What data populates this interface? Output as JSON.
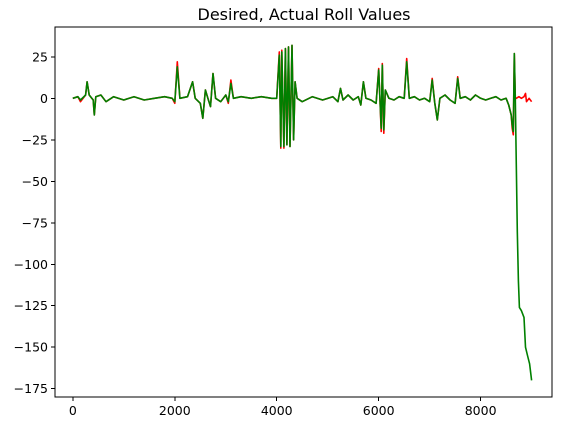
{
  "chart_data": {
    "type": "line",
    "title": "Desired, Actual Roll Values",
    "xlabel": "",
    "ylabel": "",
    "xlim": [
      -350,
      9400
    ],
    "ylim": [
      -180,
      43
    ],
    "x_ticks": [
      0,
      2000,
      4000,
      6000,
      8000
    ],
    "x_tick_labels": [
      "0",
      "2000",
      "4000",
      "6000",
      "8000"
    ],
    "y_ticks": [
      25,
      0,
      -25,
      -50,
      -75,
      -100,
      -125,
      -150,
      -175
    ],
    "y_tick_labels": [
      "25",
      "0",
      "−25",
      "−50",
      "−75",
      "−100",
      "−125",
      "−150",
      "−175"
    ],
    "grid": false,
    "series": [
      {
        "color": "#ff0000",
        "points": [
          [
            0,
            0
          ],
          [
            100,
            1
          ],
          [
            150,
            -2
          ],
          [
            250,
            2
          ],
          [
            280,
            10
          ],
          [
            320,
            2
          ],
          [
            400,
            -1
          ],
          [
            420,
            -10
          ],
          [
            450,
            1
          ],
          [
            550,
            2
          ],
          [
            650,
            -2
          ],
          [
            800,
            1
          ],
          [
            1000,
            -1
          ],
          [
            1200,
            1
          ],
          [
            1400,
            -1
          ],
          [
            1600,
            0
          ],
          [
            1800,
            1
          ],
          [
            1950,
            0
          ],
          [
            2000,
            -3
          ],
          [
            2050,
            22
          ],
          [
            2100,
            0
          ],
          [
            2250,
            1
          ],
          [
            2350,
            10
          ],
          [
            2400,
            0
          ],
          [
            2500,
            -3
          ],
          [
            2550,
            -12
          ],
          [
            2600,
            5
          ],
          [
            2650,
            0
          ],
          [
            2700,
            -5
          ],
          [
            2750,
            15
          ],
          [
            2800,
            0
          ],
          [
            2900,
            -2
          ],
          [
            3000,
            2
          ],
          [
            3050,
            -3
          ],
          [
            3100,
            11
          ],
          [
            3150,
            0
          ],
          [
            3300,
            1
          ],
          [
            3500,
            0
          ],
          [
            3700,
            1
          ],
          [
            3900,
            0
          ],
          [
            4000,
            0
          ],
          [
            4050,
            28
          ],
          [
            4080,
            -30
          ],
          [
            4100,
            29
          ],
          [
            4140,
            -30
          ],
          [
            4170,
            30
          ],
          [
            4200,
            -28
          ],
          [
            4230,
            31
          ],
          [
            4260,
            -29
          ],
          [
            4300,
            32
          ],
          [
            4330,
            -25
          ],
          [
            4360,
            10
          ],
          [
            4400,
            0
          ],
          [
            4500,
            -2
          ],
          [
            4700,
            1
          ],
          [
            4900,
            -1
          ],
          [
            5100,
            1
          ],
          [
            5200,
            -2
          ],
          [
            5250,
            6
          ],
          [
            5300,
            -1
          ],
          [
            5400,
            2
          ],
          [
            5500,
            -1
          ],
          [
            5600,
            1
          ],
          [
            5650,
            -4
          ],
          [
            5700,
            10
          ],
          [
            5750,
            0
          ],
          [
            5850,
            -1
          ],
          [
            5950,
            -3
          ],
          [
            6000,
            18
          ],
          [
            6050,
            -20
          ],
          [
            6070,
            21
          ],
          [
            6100,
            -21
          ],
          [
            6130,
            5
          ],
          [
            6200,
            0
          ],
          [
            6300,
            -1
          ],
          [
            6400,
            1
          ],
          [
            6500,
            0
          ],
          [
            6550,
            24
          ],
          [
            6600,
            0
          ],
          [
            6700,
            1
          ],
          [
            6800,
            -1
          ],
          [
            6900,
            0
          ],
          [
            7000,
            -2
          ],
          [
            7050,
            12
          ],
          [
            7100,
            -3
          ],
          [
            7150,
            -13
          ],
          [
            7200,
            0
          ],
          [
            7300,
            2
          ],
          [
            7400,
            -1
          ],
          [
            7500,
            -3
          ],
          [
            7550,
            13
          ],
          [
            7600,
            0
          ],
          [
            7700,
            1
          ],
          [
            7800,
            -1
          ],
          [
            7900,
            2
          ],
          [
            8000,
            0
          ],
          [
            8100,
            -1
          ],
          [
            8200,
            0
          ],
          [
            8300,
            1
          ],
          [
            8400,
            -1
          ],
          [
            8500,
            0
          ],
          [
            8550,
            -4
          ],
          [
            8600,
            -10
          ],
          [
            8620,
            -18
          ],
          [
            8640,
            -22
          ],
          [
            8660,
            27
          ],
          [
            8680,
            0
          ],
          [
            8700,
            0
          ],
          [
            8750,
            1
          ],
          [
            8800,
            0
          ],
          [
            8850,
            1
          ],
          [
            8880,
            3
          ],
          [
            8900,
            -2
          ],
          [
            8950,
            0
          ],
          [
            9000,
            -2
          ]
        ]
      },
      {
        "color": "#008000",
        "points": [
          [
            0,
            0
          ],
          [
            100,
            1
          ],
          [
            150,
            -1
          ],
          [
            250,
            2
          ],
          [
            280,
            10
          ],
          [
            320,
            2
          ],
          [
            400,
            -1
          ],
          [
            420,
            -10
          ],
          [
            450,
            1
          ],
          [
            550,
            2
          ],
          [
            650,
            -2
          ],
          [
            800,
            1
          ],
          [
            1000,
            -1
          ],
          [
            1200,
            1
          ],
          [
            1400,
            -1
          ],
          [
            1600,
            0
          ],
          [
            1800,
            1
          ],
          [
            1950,
            0
          ],
          [
            2000,
            -2
          ],
          [
            2050,
            19
          ],
          [
            2100,
            0
          ],
          [
            2250,
            1
          ],
          [
            2350,
            10
          ],
          [
            2400,
            0
          ],
          [
            2500,
            -3
          ],
          [
            2550,
            -12
          ],
          [
            2600,
            5
          ],
          [
            2650,
            0
          ],
          [
            2700,
            -5
          ],
          [
            2750,
            15
          ],
          [
            2800,
            0
          ],
          [
            2900,
            -2
          ],
          [
            3000,
            2
          ],
          [
            3050,
            -2
          ],
          [
            3100,
            9
          ],
          [
            3150,
            0
          ],
          [
            3300,
            1
          ],
          [
            3500,
            0
          ],
          [
            3700,
            1
          ],
          [
            3900,
            0
          ],
          [
            4000,
            0
          ],
          [
            4050,
            26
          ],
          [
            4080,
            -29
          ],
          [
            4100,
            28
          ],
          [
            4140,
            -29
          ],
          [
            4170,
            30
          ],
          [
            4200,
            -28
          ],
          [
            4230,
            31
          ],
          [
            4260,
            -29
          ],
          [
            4300,
            32
          ],
          [
            4330,
            -25
          ],
          [
            4360,
            10
          ],
          [
            4400,
            0
          ],
          [
            4500,
            -2
          ],
          [
            4700,
            1
          ],
          [
            4900,
            -1
          ],
          [
            5100,
            1
          ],
          [
            5200,
            -2
          ],
          [
            5250,
            6
          ],
          [
            5300,
            -1
          ],
          [
            5400,
            2
          ],
          [
            5500,
            -1
          ],
          [
            5600,
            1
          ],
          [
            5650,
            -4
          ],
          [
            5700,
            10
          ],
          [
            5750,
            0
          ],
          [
            5850,
            -1
          ],
          [
            5950,
            -3
          ],
          [
            6000,
            17
          ],
          [
            6050,
            -18
          ],
          [
            6070,
            20
          ],
          [
            6100,
            -19
          ],
          [
            6130,
            5
          ],
          [
            6200,
            0
          ],
          [
            6300,
            -1
          ],
          [
            6400,
            1
          ],
          [
            6500,
            0
          ],
          [
            6550,
            22
          ],
          [
            6600,
            0
          ],
          [
            6700,
            1
          ],
          [
            6800,
            -1
          ],
          [
            6900,
            0
          ],
          [
            7000,
            -2
          ],
          [
            7050,
            11
          ],
          [
            7100,
            -3
          ],
          [
            7150,
            -13
          ],
          [
            7200,
            0
          ],
          [
            7300,
            2
          ],
          [
            7400,
            -1
          ],
          [
            7500,
            -3
          ],
          [
            7550,
            12
          ],
          [
            7600,
            0
          ],
          [
            7700,
            1
          ],
          [
            7800,
            -1
          ],
          [
            7900,
            2
          ],
          [
            8000,
            0
          ],
          [
            8100,
            -1
          ],
          [
            8200,
            0
          ],
          [
            8300,
            1
          ],
          [
            8400,
            -1
          ],
          [
            8500,
            0
          ],
          [
            8550,
            -4
          ],
          [
            8600,
            -10
          ],
          [
            8620,
            -16
          ],
          [
            8640,
            -20
          ],
          [
            8660,
            27
          ],
          [
            8680,
            0
          ],
          [
            8700,
            -40
          ],
          [
            8720,
            -80
          ],
          [
            8740,
            -110
          ],
          [
            8760,
            -126
          ],
          [
            8800,
            -128
          ],
          [
            8850,
            -132
          ],
          [
            8880,
            -150
          ],
          [
            8920,
            -155
          ],
          [
            8960,
            -160
          ],
          [
            8980,
            -165
          ],
          [
            9000,
            -170
          ]
        ]
      }
    ]
  }
}
